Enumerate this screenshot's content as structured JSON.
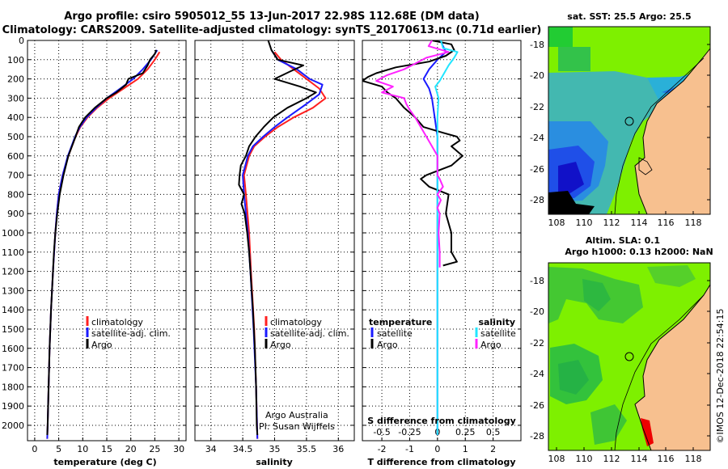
{
  "header": {
    "title_line1": "Argo profile: csiro 5905012_55 13-Jun-2017 22.98S 112.68E (DM data)",
    "title_line2": "Climatology: CARS2009. Satellite-adjusted climatology: synTS_20170613.nc (0.71d earlier)"
  },
  "colors": {
    "climatology": "#ff2020",
    "satellite": "#1a1aff",
    "argo": "#000000",
    "t_diff_satellite": "#1a1aff",
    "s_diff_argo": "#ff22ff",
    "s_diff_satellite": "#22e5ff",
    "land": "#f7c08f"
  },
  "depth_axis": {
    "ticks": [
      "0",
      "100",
      "200",
      "300",
      "400",
      "500",
      "600",
      "700",
      "800",
      "900",
      "1000",
      "1100",
      "1200",
      "1300",
      "1400",
      "1500",
      "1600",
      "1700",
      "1800",
      "1900",
      "2000"
    ]
  },
  "chart_data": [
    {
      "id": "temperature",
      "type": "line",
      "xlabel": "temperature (deg C)",
      "ylabel": "",
      "xlim": [
        -1.5,
        31.5
      ],
      "ylim": [
        2080,
        0
      ],
      "x_ticks": [
        0,
        5,
        10,
        15,
        20,
        25,
        30
      ],
      "x_tick_labels": [
        "0",
        "5",
        "10",
        "15",
        "20",
        "25",
        "30"
      ],
      "legend": [
        "climatology",
        "satellite-adj. clim.",
        "Argo"
      ],
      "series": [
        {
          "name": "climatology",
          "depth": [
            60,
            100,
            150,
            200,
            250,
            300,
            350,
            400,
            450,
            500,
            600,
            700,
            800,
            900,
            1000,
            1200,
            1400,
            1600,
            1800,
            2000,
            2070
          ],
          "values": [
            26,
            25,
            23.5,
            21.5,
            18.5,
            15.5,
            13,
            11,
            9.5,
            8.5,
            7,
            5.8,
            5,
            4.6,
            4.3,
            3.8,
            3.4,
            3.1,
            2.9,
            2.7,
            2.6
          ]
        },
        {
          "name": "satellite-adj. clim.",
          "depth": [
            50,
            100,
            150,
            200,
            250,
            300,
            350,
            400,
            450,
            500,
            600,
            700,
            800,
            900,
            1000,
            1200,
            1400,
            1600,
            1800,
            2000,
            2070
          ],
          "values": [
            25.5,
            24.2,
            22.5,
            20.5,
            17.8,
            15,
            12.8,
            10.8,
            9.4,
            8.4,
            6.9,
            5.8,
            5,
            4.6,
            4.3,
            3.8,
            3.4,
            3.1,
            2.9,
            2.7,
            2.6
          ]
        },
        {
          "name": "Argo",
          "depth": [
            50,
            70,
            100,
            130,
            170,
            200,
            230,
            270,
            300,
            350,
            400,
            450,
            500,
            600,
            700,
            800,
            900,
            1000,
            1100,
            1200,
            1400,
            1600,
            1800,
            2000,
            2050
          ],
          "values": [
            25.3,
            25,
            24,
            23.5,
            22.5,
            19.5,
            19,
            17,
            15,
            12.5,
            10.5,
            9.2,
            8.5,
            7,
            6,
            5.2,
            4.7,
            4.3,
            4,
            3.8,
            3.4,
            3.1,
            2.9,
            2.7,
            2.6
          ]
        }
      ]
    },
    {
      "id": "salinity",
      "type": "line",
      "xlabel": "salinity",
      "xlim": [
        33.75,
        36.25
      ],
      "ylim": [
        2080,
        0
      ],
      "x_ticks": [
        34,
        34.5,
        35,
        35.5,
        36
      ],
      "x_tick_labels": [
        "34",
        "34.5",
        "35",
        "35.5",
        "36"
      ],
      "legend": [
        "climatology",
        "satellite-adj. clim.",
        "Argo"
      ],
      "annotation_line1": "Argo Australia",
      "annotation_line2": "PI: Susan Wijffels",
      "series": [
        {
          "name": "climatology",
          "depth": [
            60,
            100,
            150,
            200,
            250,
            300,
            350,
            400,
            450,
            500,
            550,
            600,
            700,
            800,
            1000,
            1200,
            1500,
            1800,
            2070
          ],
          "values": [
            35.0,
            35.1,
            35.3,
            35.5,
            35.7,
            35.8,
            35.6,
            35.3,
            35.05,
            34.85,
            34.68,
            34.6,
            34.52,
            34.55,
            34.6,
            34.63,
            34.68,
            34.71,
            34.73
          ]
        },
        {
          "name": "satellite-adj. clim.",
          "depth": [
            50,
            100,
            150,
            200,
            230,
            280,
            330,
            400,
            450,
            500,
            550,
            600,
            700,
            800,
            1000,
            1200,
            1500,
            1800,
            2070
          ],
          "values": [
            34.95,
            35.05,
            35.35,
            35.55,
            35.75,
            35.7,
            35.5,
            35.2,
            35.0,
            34.82,
            34.66,
            34.58,
            34.5,
            34.52,
            34.58,
            34.62,
            34.67,
            34.71,
            34.73
          ]
        },
        {
          "name": "Argo",
          "depth": [
            0,
            50,
            100,
            130,
            160,
            200,
            240,
            270,
            300,
            350,
            400,
            450,
            500,
            550,
            600,
            650,
            700,
            750,
            800,
            850,
            900,
            1000,
            1100,
            1200,
            1400,
            1600,
            1800,
            2000,
            2050
          ],
          "values": [
            34.9,
            34.95,
            35.05,
            35.45,
            35.25,
            35.0,
            35.4,
            35.65,
            35.5,
            35.2,
            34.98,
            34.83,
            34.7,
            34.6,
            34.55,
            34.47,
            34.45,
            34.44,
            34.52,
            34.48,
            34.53,
            34.57,
            34.6,
            34.62,
            34.66,
            34.69,
            34.71,
            34.72,
            34.73
          ]
        }
      ]
    },
    {
      "id": "t_difference",
      "type": "line",
      "xlabel": "T difference from climatology",
      "top_xlabel": "S difference from climatology",
      "xlim": [
        -2.7,
        3.0
      ],
      "ylim": [
        2080,
        0
      ],
      "x_ticks": [
        -2,
        -1,
        0,
        1,
        2
      ],
      "x_tick_labels": [
        "-2",
        "-1",
        "0",
        "1",
        "2"
      ],
      "s_ticks": [
        -0.5,
        -0.25,
        0,
        0.25,
        0.5
      ],
      "s_tick_labels": [
        "-0.5",
        "-0.25",
        "0",
        "0.25",
        "0.5"
      ],
      "legend_temperature_title": "temperature",
      "legend_salinity_title": "salinity",
      "legend": [
        "satellite",
        "Argo",
        "satellite",
        "Argo"
      ],
      "series": [
        {
          "name": "temperature satellite",
          "depth": [
            0,
            60,
            100,
            150,
            200,
            250,
            300,
            400,
            500,
            600,
            700,
            800,
            900,
            1000,
            1100,
            1200,
            1400,
            1600,
            1800,
            2000,
            2050
          ],
          "values": [
            0.1,
            0.3,
            0.0,
            -0.3,
            -0.5,
            -0.3,
            -0.2,
            -0.1,
            0.0,
            0.0,
            0.0,
            0.0,
            0.0,
            0.0,
            0.0,
            0.0,
            0.0,
            0.0,
            0.0,
            0.0,
            0.0
          ]
        },
        {
          "name": "temperature Argo",
          "depth": [
            0,
            20,
            50,
            80,
            110,
            140,
            170,
            190,
            210,
            240,
            270,
            300,
            350,
            400,
            450,
            480,
            500,
            520,
            550,
            600,
            650,
            700,
            720,
            760,
            800,
            900,
            1000,
            1100,
            1150,
            1170
          ],
          "values": [
            -0.2,
            0.5,
            0.6,
            0.3,
            -0.3,
            -1.5,
            -2.2,
            -2.5,
            -2.7,
            -2.0,
            -1.8,
            -1.5,
            -1.2,
            -0.8,
            -0.5,
            0.2,
            0.7,
            0.8,
            0.5,
            0.9,
            0.5,
            -0.4,
            -0.6,
            -0.3,
            0.4,
            0.3,
            0.5,
            0.5,
            0.7,
            0.2
          ]
        }
      ]
    },
    {
      "id": "s_difference",
      "type": "line",
      "xlim": [
        -0.675,
        0.75
      ],
      "ylim": [
        2080,
        0
      ],
      "series": [
        {
          "name": "salinity satellite",
          "depth": [
            0,
            40,
            60,
            90,
            130,
            170,
            210,
            240,
            300,
            400,
            500,
            600,
            800,
            1000,
            1200,
            1500,
            1800,
            2050
          ],
          "values": [
            0.03,
            0.05,
            0.18,
            0.15,
            0.1,
            0.06,
            0.02,
            -0.02,
            0.01,
            0.0,
            0.0,
            0.0,
            0.0,
            0.0,
            0.0,
            0.0,
            0.0,
            0.0
          ]
        },
        {
          "name": "salinity Argo",
          "depth": [
            0,
            30,
            60,
            90,
            120,
            150,
            180,
            210,
            240,
            270,
            300,
            330,
            360,
            400,
            450,
            500,
            550,
            600,
            650,
            700,
            720,
            760,
            800,
            830,
            870,
            900,
            1000,
            1100,
            1180
          ],
          "values": [
            -0.05,
            -0.08,
            0.1,
            -0.1,
            -0.2,
            -0.3,
            -0.45,
            -0.55,
            -0.4,
            -0.5,
            -0.3,
            -0.28,
            -0.25,
            -0.2,
            -0.15,
            -0.1,
            -0.05,
            0.0,
            0.0,
            0.0,
            0.02,
            0.05,
            0.0,
            0.03,
            0.0,
            0.02,
            0.01,
            0.02,
            0.02
          ]
        }
      ]
    }
  ],
  "map_sst": {
    "title": "sat. SST: 25.5 Argo: 25.5",
    "lat_ticks": [
      "-18",
      "-20",
      "-22",
      "-24",
      "-26",
      "-28"
    ],
    "lon_ticks": [
      "108",
      "110",
      "112",
      "114",
      "116",
      "118"
    ]
  },
  "map_sla": {
    "title_line1": "Altim. SLA: 0.1",
    "title_line2": "Argo h1000: 0.13 h2000: NaN",
    "lat_ticks": [
      "-18",
      "-20",
      "-22",
      "-24",
      "-26",
      "-28"
    ],
    "lon_ticks": [
      "108",
      "110",
      "112",
      "114",
      "116",
      "118"
    ]
  },
  "credit": "©IMOS 12-Dec-2018 22:54:15"
}
